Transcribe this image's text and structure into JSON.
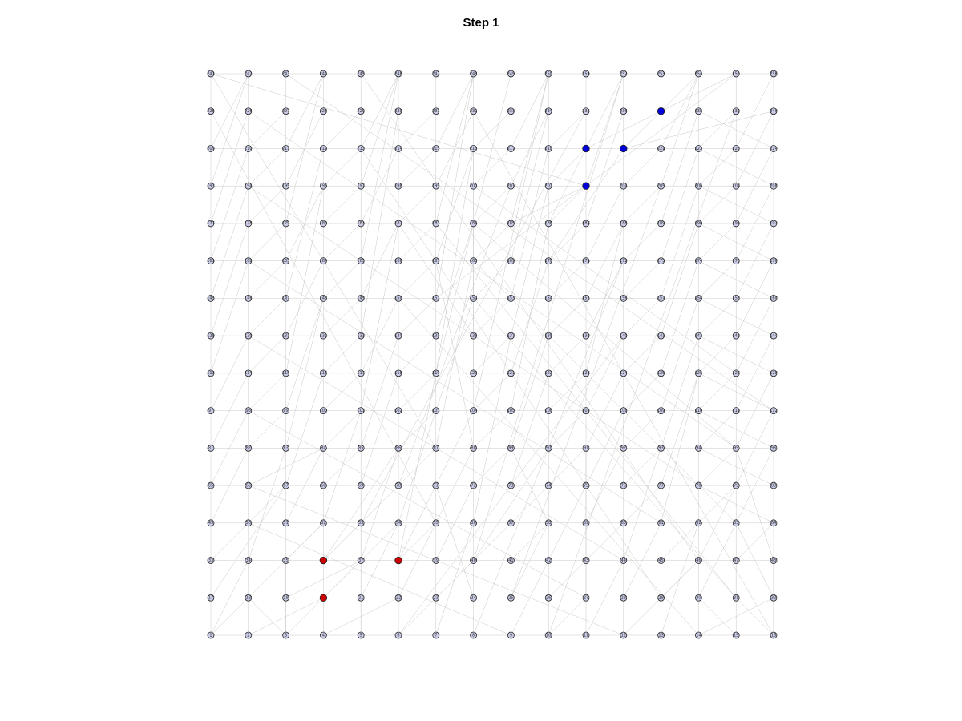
{
  "title": "Step 1",
  "graph": {
    "rows": 16,
    "cols": 16,
    "node_labels_row_major_from_bottom_left": true,
    "colors": {
      "default_node": "#c9cbe6",
      "red_group": "#cc0000",
      "blue_group": "#0000dd",
      "edge": "#c8c8c8",
      "node_stroke": "#222222"
    },
    "red_nodes": [
      20,
      36,
      38
    ],
    "blue_nodes": [
      203,
      219,
      220,
      237
    ],
    "extra_edges": [
      [
        1,
        18
      ],
      [
        2,
        20
      ],
      [
        3,
        35
      ],
      [
        4,
        22
      ],
      [
        5,
        69
      ],
      [
        6,
        40
      ],
      [
        7,
        56
      ],
      [
        9,
        42
      ],
      [
        10,
        27
      ],
      [
        11,
        44
      ],
      [
        12,
        46
      ],
      [
        13,
        62
      ],
      [
        14,
        32
      ],
      [
        15,
        30
      ],
      [
        16,
        48
      ],
      [
        16,
        31
      ],
      [
        1,
        34
      ],
      [
        3,
        18
      ],
      [
        17,
        67
      ],
      [
        18,
        52
      ],
      [
        19,
        37
      ],
      [
        20,
        54
      ],
      [
        21,
        54
      ],
      [
        22,
        55
      ],
      [
        23,
        57
      ],
      [
        24,
        71
      ],
      [
        25,
        58
      ],
      [
        26,
        43
      ],
      [
        27,
        91
      ],
      [
        28,
        61
      ],
      [
        29,
        46
      ],
      [
        30,
        63
      ],
      [
        31,
        47
      ],
      [
        32,
        63
      ],
      [
        33,
        50
      ],
      [
        34,
        83
      ],
      [
        35,
        52
      ],
      [
        36,
        70
      ],
      [
        37,
        86
      ],
      [
        38,
        119
      ],
      [
        39,
        72
      ],
      [
        40,
        90
      ],
      [
        41,
        58
      ],
      [
        42,
        75
      ],
      [
        43,
        60
      ],
      [
        44,
        93
      ],
      [
        45,
        62
      ],
      [
        46,
        79
      ],
      [
        47,
        64
      ],
      [
        48,
        95
      ],
      [
        49,
        82
      ],
      [
        50,
        67
      ],
      [
        51,
        84
      ],
      [
        52,
        101
      ],
      [
        53,
        70
      ],
      [
        54,
        103
      ],
      [
        55,
        88
      ],
      [
        56,
        137
      ],
      [
        57,
        74
      ],
      [
        58,
        89
      ],
      [
        59,
        92
      ],
      [
        60,
        77
      ],
      [
        61,
        126
      ],
      [
        62,
        79
      ],
      [
        63,
        96
      ],
      [
        64,
        78
      ],
      [
        65,
        98
      ],
      [
        66,
        84
      ],
      [
        67,
        116
      ],
      [
        68,
        85
      ],
      [
        69,
        118
      ],
      [
        70,
        87
      ],
      [
        71,
        104
      ],
      [
        72,
        89
      ],
      [
        73,
        122
      ],
      [
        74,
        91
      ],
      [
        75,
        108
      ],
      [
        76,
        93
      ],
      [
        77,
        126
      ],
      [
        78,
        95
      ],
      [
        79,
        112
      ],
      [
        80,
        94
      ],
      [
        81,
        114
      ],
      [
        82,
        99
      ],
      [
        83,
        148
      ],
      [
        84,
        101
      ],
      [
        85,
        134
      ],
      [
        86,
        103
      ],
      [
        87,
        168
      ],
      [
        88,
        105
      ],
      [
        89,
        138
      ],
      [
        90,
        107
      ],
      [
        91,
        124
      ],
      [
        92,
        109
      ],
      [
        93,
        142
      ],
      [
        94,
        111
      ],
      [
        95,
        128
      ],
      [
        96,
        110
      ],
      [
        97,
        130
      ],
      [
        98,
        115
      ],
      [
        99,
        148
      ],
      [
        100,
        117
      ],
      [
        101,
        182
      ],
      [
        102,
        119
      ],
      [
        103,
        152
      ],
      [
        104,
        121
      ],
      [
        105,
        186
      ],
      [
        106,
        123
      ],
      [
        107,
        140
      ],
      [
        108,
        125
      ],
      [
        109,
        158
      ],
      [
        110,
        127
      ],
      [
        111,
        144
      ],
      [
        112,
        126
      ],
      [
        113,
        162
      ],
      [
        114,
        131
      ],
      [
        115,
        196
      ],
      [
        116,
        133
      ],
      [
        117,
        150
      ],
      [
        118,
        135
      ],
      [
        119,
        216
      ],
      [
        120,
        137
      ],
      [
        121,
        170
      ],
      [
        122,
        139
      ],
      [
        123,
        188
      ],
      [
        124,
        141
      ],
      [
        125,
        174
      ],
      [
        126,
        143
      ],
      [
        127,
        160
      ],
      [
        128,
        142
      ],
      [
        129,
        178
      ],
      [
        130,
        147
      ],
      [
        131,
        164
      ],
      [
        132,
        149
      ],
      [
        133,
        230
      ],
      [
        134,
        151
      ],
      [
        135,
        184
      ],
      [
        136,
        153
      ],
      [
        137,
        202
      ],
      [
        138,
        155
      ],
      [
        139,
        172
      ],
      [
        140,
        157
      ],
      [
        141,
        190
      ],
      [
        142,
        159
      ],
      [
        143,
        176
      ],
      [
        144,
        158
      ],
      [
        145,
        194
      ],
      [
        146,
        163
      ],
      [
        147,
        212
      ],
      [
        148,
        165
      ],
      [
        149,
        182
      ],
      [
        150,
        167
      ],
      [
        151,
        248
      ],
      [
        152,
        169
      ],
      [
        153,
        218
      ],
      [
        154,
        171
      ],
      [
        155,
        188
      ],
      [
        156,
        173
      ],
      [
        157,
        206
      ],
      [
        158,
        175
      ],
      [
        159,
        192
      ],
      [
        160,
        174
      ],
      [
        161,
        210
      ],
      [
        162,
        179
      ],
      [
        163,
        196
      ],
      [
        164,
        181
      ],
      [
        165,
        246
      ],
      [
        166,
        183
      ],
      [
        167,
        216
      ],
      [
        168,
        185
      ],
      [
        169,
        234
      ],
      [
        170,
        187
      ],
      [
        171,
        204
      ],
      [
        172,
        189
      ],
      [
        173,
        222
      ],
      [
        174,
        191
      ],
      [
        175,
        208
      ],
      [
        176,
        190
      ],
      [
        177,
        226
      ],
      [
        178,
        195
      ],
      [
        179,
        244
      ],
      [
        180,
        197
      ],
      [
        181,
        214
      ],
      [
        182,
        199
      ],
      [
        183,
        248
      ],
      [
        184,
        201
      ],
      [
        185,
        250
      ],
      [
        186,
        203
      ],
      [
        187,
        236
      ],
      [
        188,
        205
      ],
      [
        189,
        238
      ],
      [
        190,
        207
      ],
      [
        191,
        224
      ],
      [
        192,
        206
      ],
      [
        193,
        242
      ],
      [
        194,
        211
      ],
      [
        195,
        228
      ],
      [
        196,
        213
      ],
      [
        197,
        246
      ],
      [
        198,
        215
      ],
      [
        199,
        232
      ],
      [
        200,
        217
      ],
      [
        201,
        234
      ],
      [
        202,
        219
      ],
      [
        203,
        252
      ],
      [
        204,
        221
      ],
      [
        205,
        254
      ],
      [
        206,
        223
      ],
      [
        207,
        240
      ],
      [
        208,
        222
      ],
      [
        209,
        242
      ],
      [
        210,
        227
      ],
      [
        211,
        244
      ],
      [
        212,
        229
      ],
      [
        213,
        246
      ],
      [
        214,
        231
      ],
      [
        215,
        248
      ],
      [
        216,
        233
      ],
      [
        217,
        250
      ],
      [
        218,
        235
      ],
      [
        219,
        252
      ],
      [
        220,
        237
      ],
      [
        221,
        254
      ],
      [
        222,
        239
      ],
      [
        223,
        256
      ],
      [
        224,
        238
      ],
      [
        50,
        9
      ],
      [
        66,
        12
      ],
      [
        98,
        27
      ],
      [
        130,
        44
      ],
      [
        162,
        61
      ],
      [
        194,
        78
      ],
      [
        226,
        95
      ],
      [
        243,
        112
      ],
      [
        213,
        29
      ],
      [
        245,
        46
      ],
      [
        150,
        14
      ],
      [
        183,
        31
      ],
      [
        232,
        16
      ],
      [
        6,
        140
      ],
      [
        8,
        172
      ],
      [
        10,
        239
      ],
      [
        25,
        205
      ],
      [
        40,
        252
      ],
      [
        53,
        235
      ],
      [
        70,
        201
      ],
      [
        88,
        167
      ],
      [
        104,
        250
      ],
      [
        120,
        216
      ],
      [
        136,
        182
      ],
      [
        152,
        31
      ],
      [
        168,
        63
      ],
      [
        184,
        95
      ],
      [
        200,
        127
      ],
      [
        225,
        55
      ],
      [
        241,
        87
      ],
      [
        249,
        119
      ],
      [
        255,
        151
      ],
      [
        203,
        241
      ],
      [
        219,
        255
      ],
      [
        220,
        240
      ],
      [
        237,
        253
      ],
      [
        203,
        185
      ],
      [
        219,
        186
      ],
      [
        220,
        170
      ],
      [
        237,
        254
      ],
      [
        36,
        53
      ],
      [
        38,
        55
      ],
      [
        20,
        3
      ],
      [
        36,
        86
      ],
      [
        38,
        71
      ],
      [
        20,
        37
      ]
    ]
  }
}
